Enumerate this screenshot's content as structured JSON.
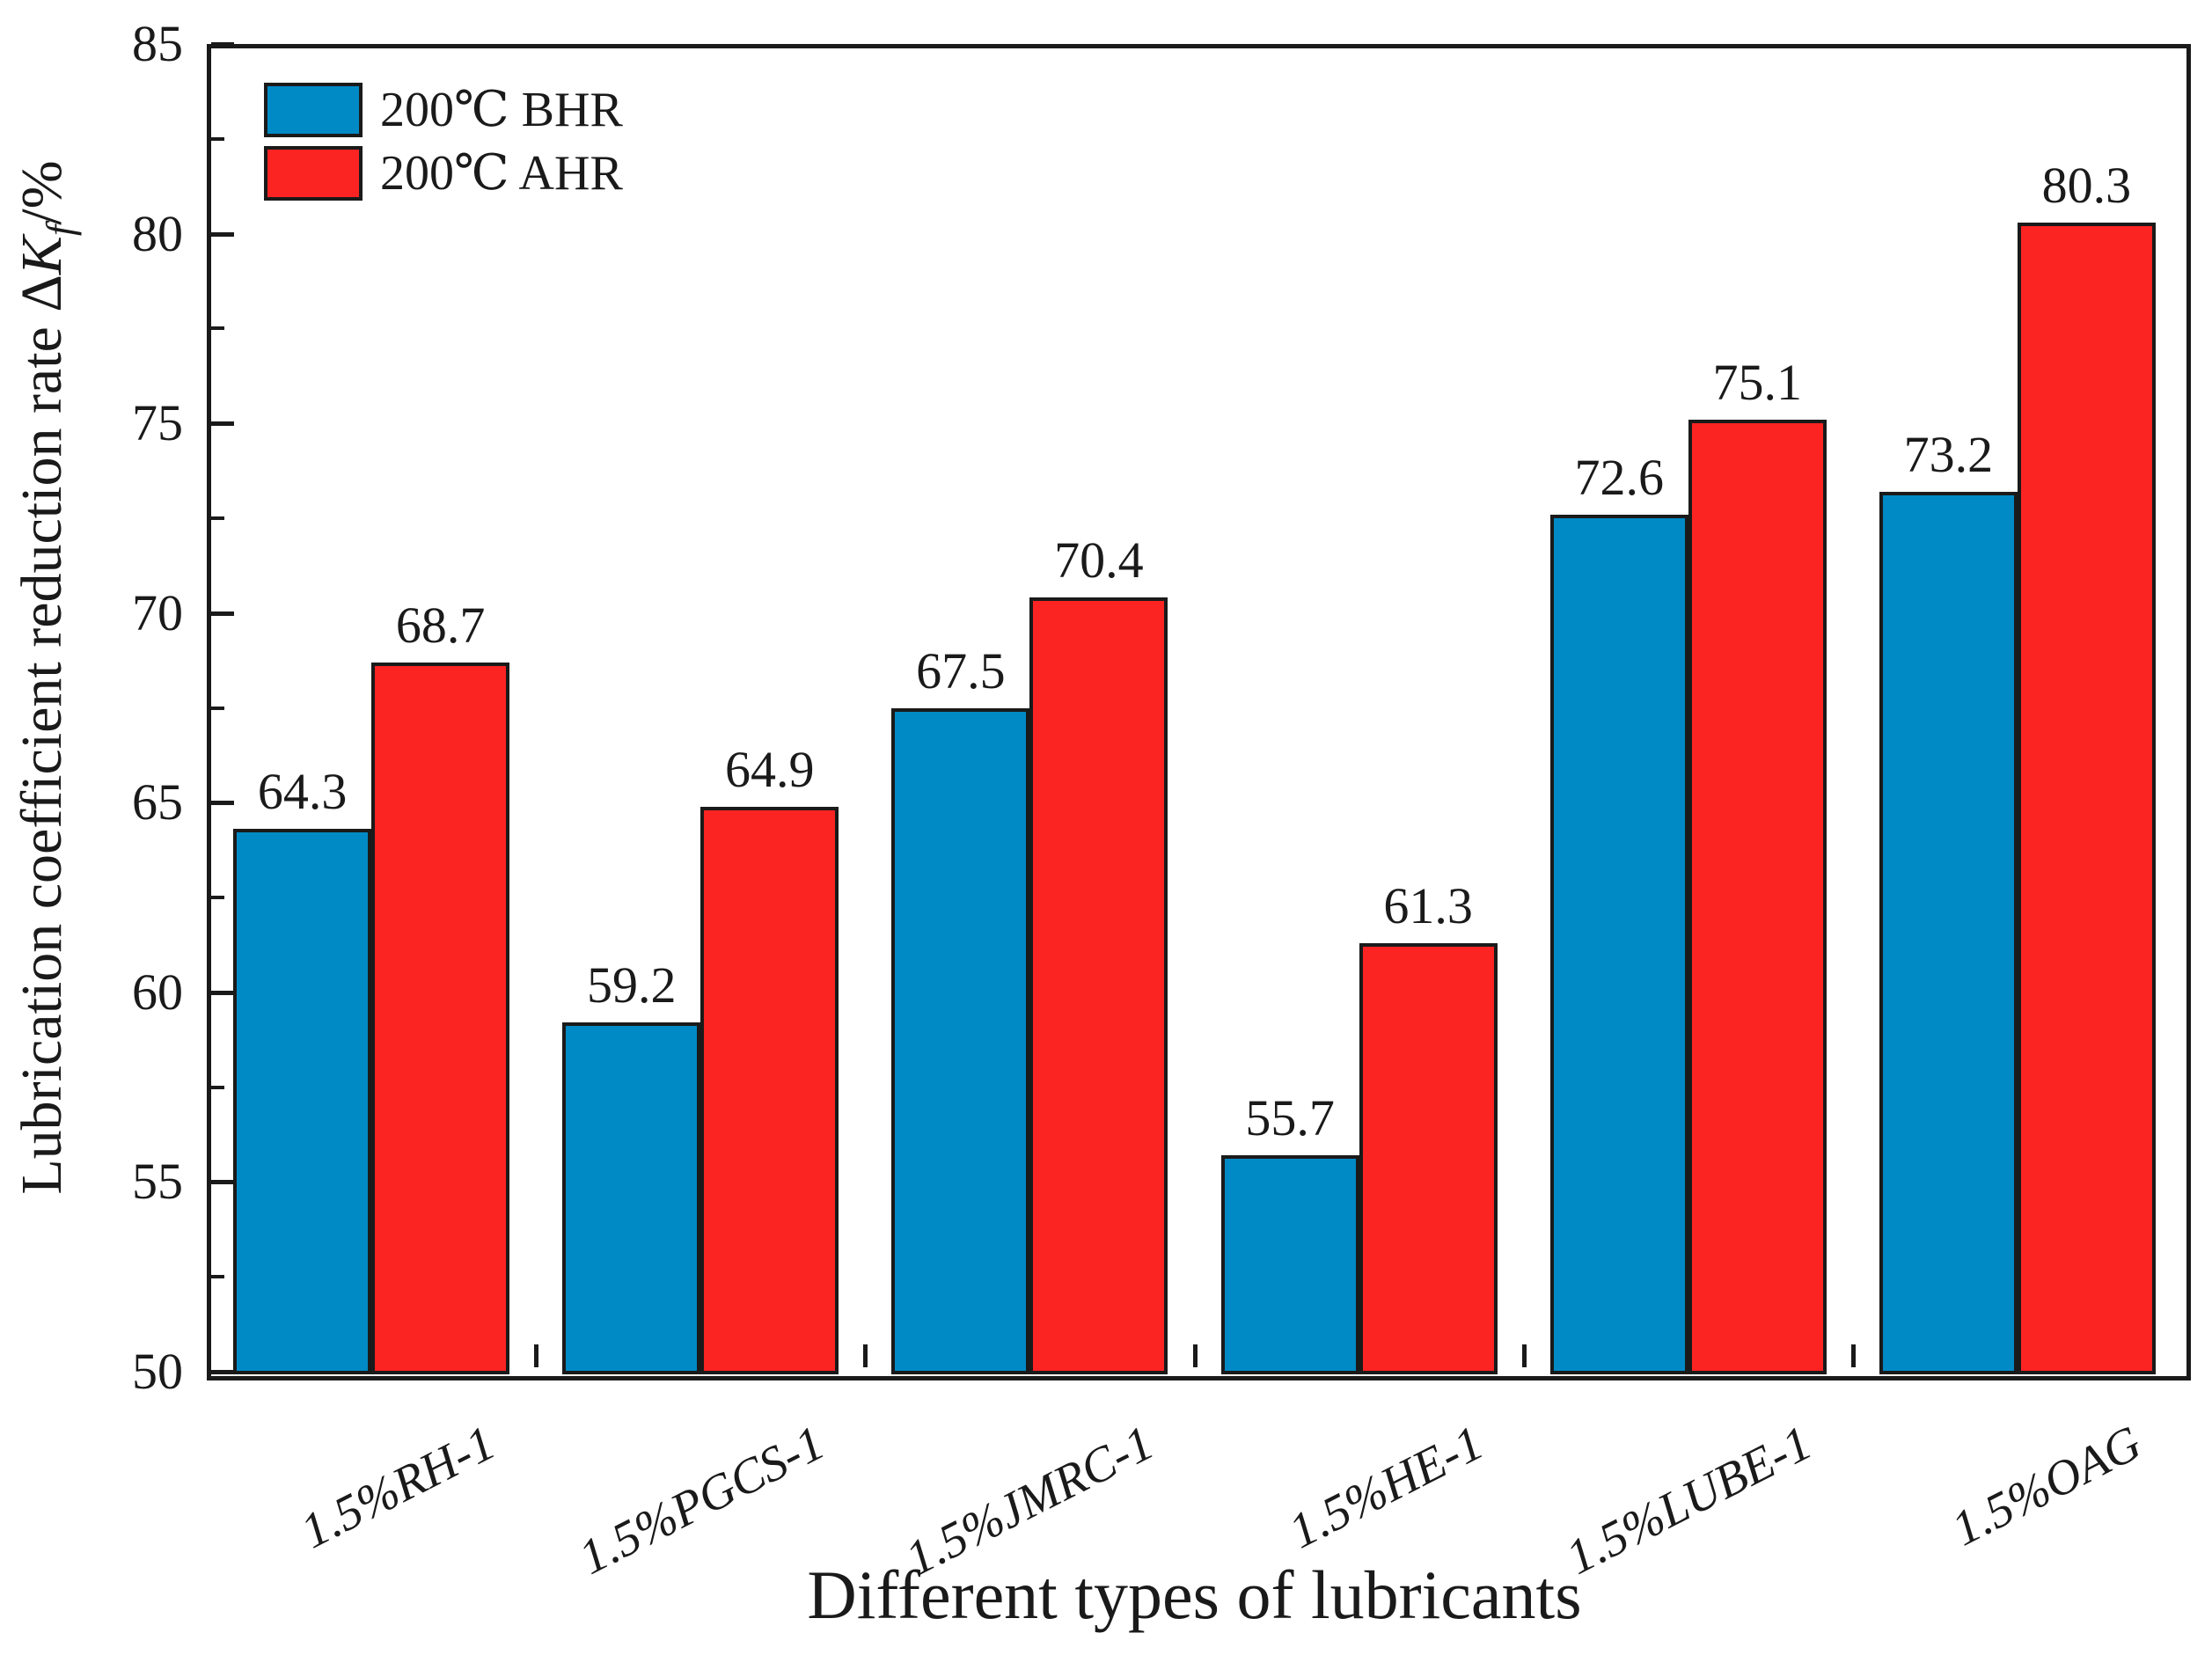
{
  "chart_data": {
    "type": "bar",
    "title": "",
    "categories": [
      "1.5%RH-1",
      "1.5%PGCS-1",
      "1.5%JMRC-1",
      "1.5%HE-1",
      "1.5%LUBE-1",
      "1.5%OAG"
    ],
    "series": [
      {
        "name": "200℃ BHR",
        "color": "#008AC5",
        "values": [
          64.3,
          59.2,
          67.5,
          55.7,
          72.6,
          73.2
        ]
      },
      {
        "name": "200℃ AHR",
        "color": "#FC2323",
        "values": [
          68.7,
          64.9,
          70.4,
          61.3,
          75.1,
          80.3
        ]
      }
    ],
    "bar_value_labels": {
      "series_0": [
        "64.3",
        "59.2",
        "67.5",
        "55.7",
        "72.6",
        "73.2"
      ],
      "series_1": [
        "68.7",
        "64.9",
        "70.4",
        "61.3",
        "75.1",
        "80.3"
      ]
    },
    "xlabel": "Different types of lubricants",
    "ylabel": "Lubrication coefficient reduction rate ΔK_f/%",
    "ylabel_parts": {
      "pre": "Lubrication coefficient reduction rate Δ",
      "k": "K",
      "sub": "f",
      "suffix": "/%"
    },
    "ylim": [
      50,
      85
    ],
    "yticks": [
      50,
      55,
      60,
      65,
      70,
      75,
      80,
      85
    ],
    "ytick_labels": [
      "50",
      "55",
      "60",
      "65",
      "70",
      "75",
      "80",
      "85"
    ],
    "yminor_step": 2.5,
    "legend_position": "top-left-inside",
    "grid": false,
    "frame": true,
    "colors": {
      "bhr_blue": "#008AC5",
      "ahr_red": "#FC2323",
      "axis_ink": "#1a1a1a",
      "background": "#ffffff"
    }
  }
}
